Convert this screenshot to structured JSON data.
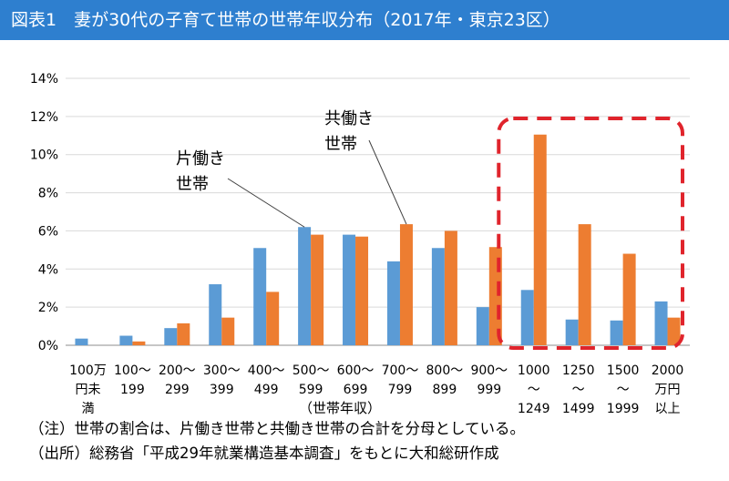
{
  "title": "図表1　妻が30代の子育て世帯の世帯年収分布（2017年・東京23区）",
  "chart_data": {
    "type": "bar",
    "categories": [
      [
        "100万",
        "円未",
        "満"
      ],
      [
        "100〜",
        "199"
      ],
      [
        "200〜",
        "299"
      ],
      [
        "300〜",
        "399"
      ],
      [
        "400〜",
        "499"
      ],
      [
        "500〜",
        "599"
      ],
      [
        "600〜",
        "699"
      ],
      [
        "700〜",
        "799"
      ],
      [
        "800〜",
        "899"
      ],
      [
        "900〜",
        "999"
      ],
      [
        "1000",
        "〜",
        "1249"
      ],
      [
        "1250",
        "〜",
        "1499"
      ],
      [
        "1500",
        "〜",
        "1999"
      ],
      [
        "2000",
        "万円",
        "以上"
      ]
    ],
    "series": [
      {
        "name": "片働き世帯",
        "color": "#5b9bd5",
        "values": [
          0.35,
          0.5,
          0.9,
          3.2,
          5.1,
          6.2,
          5.8,
          4.4,
          5.1,
          2.0,
          2.9,
          1.35,
          1.3,
          2.3
        ]
      },
      {
        "name": "共働き世帯",
        "color": "#ed7d31",
        "values": [
          0.0,
          0.2,
          1.15,
          1.45,
          2.8,
          5.8,
          5.7,
          6.35,
          6.0,
          5.15,
          11.05,
          6.35,
          4.8,
          1.45
        ]
      }
    ],
    "yticks": [
      "0%",
      "2%",
      "4%",
      "6%",
      "8%",
      "10%",
      "12%",
      "14%"
    ],
    "ylim": [
      0,
      14
    ],
    "xlabel": "（世帯年収）",
    "highlight_color": "#e0242c"
  },
  "labels": {
    "single_income": [
      "片働き",
      "世帯"
    ],
    "dual_income": [
      "共働き",
      "世帯"
    ]
  },
  "notes": {
    "note": "（注）世帯の割合は、片働き世帯と共働き世帯の合計を分母としている。",
    "source": "（出所）総務省「平成29年就業構造基本調査」をもとに大和総研作成"
  }
}
